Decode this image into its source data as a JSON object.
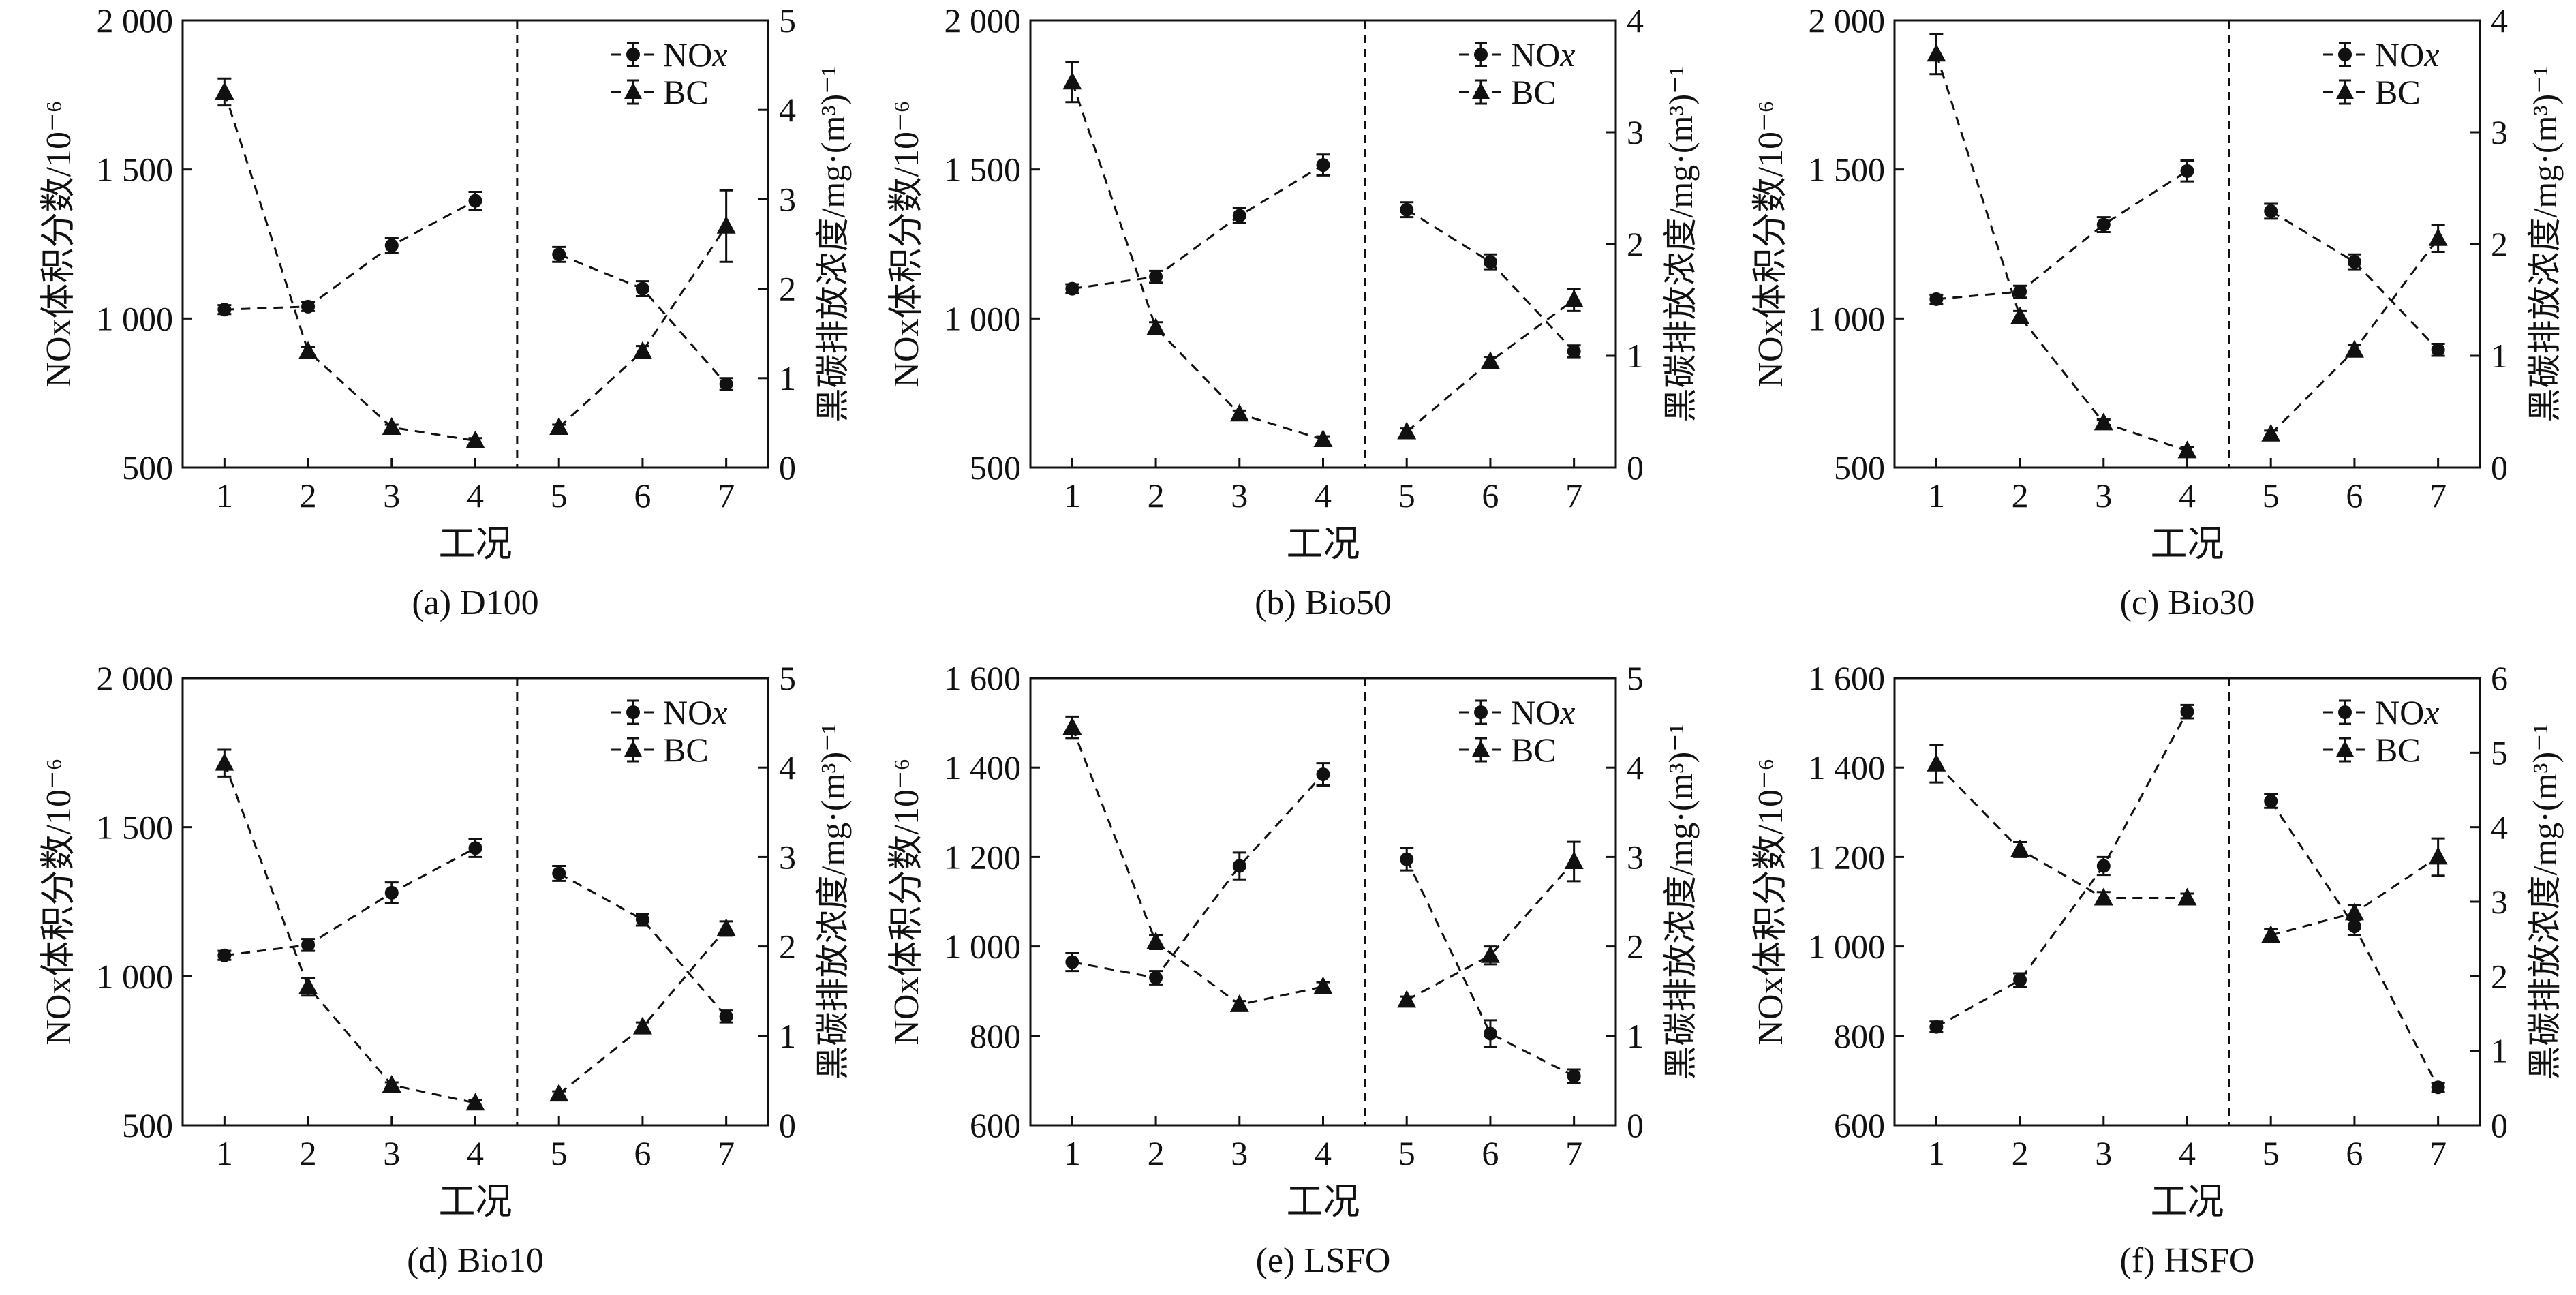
{
  "chart_data": [
    {
      "type": "line",
      "caption": "(a) D100",
      "xlabel": "工况",
      "ylabel_left": "NOx体积分数/10⁻⁶",
      "ylabel_right": "黑碳排放浓度/mg·(m³)⁻¹",
      "x": [
        1,
        2,
        3,
        4,
        5,
        6,
        7
      ],
      "left_ylim": [
        500,
        2000
      ],
      "left_ticks": [
        500,
        1000,
        1500,
        2000
      ],
      "left_tick_labels": [
        "500",
        "1 000",
        "1 500",
        "2 000"
      ],
      "right_ylim": [
        0,
        5
      ],
      "right_ticks": [
        0,
        1,
        2,
        3,
        4,
        5
      ],
      "right_tick_labels": [
        "0",
        "1",
        "2",
        "3",
        "4",
        "5"
      ],
      "divider_after_x": 4.5,
      "legend": [
        {
          "marker": "circle",
          "prefix": "NO",
          "italic": "x"
        },
        {
          "marker": "triangle",
          "prefix": "BC",
          "italic": ""
        }
      ],
      "series": [
        {
          "name": "NOx",
          "axis": "left",
          "marker": "circle",
          "values": [
            1030,
            1040,
            1245,
            1395,
            1215,
            1100,
            780
          ],
          "errors": [
            15,
            15,
            25,
            30,
            25,
            25,
            20
          ]
        },
        {
          "name": "BC",
          "axis": "right",
          "marker": "triangle",
          "values": [
            4.2,
            1.3,
            0.45,
            0.3,
            0.45,
            1.3,
            2.7
          ],
          "errors": [
            0.15,
            0.05,
            0.03,
            0.03,
            0.03,
            0.06,
            0.4
          ]
        }
      ]
    },
    {
      "type": "line",
      "caption": "(b) Bio50",
      "xlabel": "工况",
      "ylabel_left": "NOx体积分数/10⁻⁶",
      "ylabel_right": "黑碳排放浓度/mg·(m³)⁻¹",
      "x": [
        1,
        2,
        3,
        4,
        5,
        6,
        7
      ],
      "left_ylim": [
        500,
        2000
      ],
      "left_ticks": [
        500,
        1000,
        1500,
        2000
      ],
      "left_tick_labels": [
        "500",
        "1 000",
        "1 500",
        "2 000"
      ],
      "right_ylim": [
        0,
        4
      ],
      "right_ticks": [
        0,
        1,
        2,
        3,
        4
      ],
      "right_tick_labels": [
        "0",
        "1",
        "2",
        "3",
        "4"
      ],
      "divider_after_x": 4.5,
      "legend": [
        {
          "marker": "circle",
          "prefix": "NO",
          "italic": "x"
        },
        {
          "marker": "triangle",
          "prefix": "BC",
          "italic": ""
        }
      ],
      "series": [
        {
          "name": "NOx",
          "axis": "left",
          "marker": "circle",
          "values": [
            1100,
            1140,
            1345,
            1515,
            1365,
            1190,
            890
          ],
          "errors": [
            15,
            20,
            25,
            35,
            25,
            25,
            20
          ]
        },
        {
          "name": "BC",
          "axis": "right",
          "marker": "triangle",
          "values": [
            3.45,
            1.25,
            0.48,
            0.25,
            0.32,
            0.95,
            1.5
          ],
          "errors": [
            0.18,
            0.05,
            0.03,
            0.03,
            0.03,
            0.04,
            0.1
          ]
        }
      ]
    },
    {
      "type": "line",
      "caption": "(c) Bio30",
      "xlabel": "工况",
      "ylabel_left": "NOx体积分数/10⁻⁶",
      "ylabel_right": "黑碳排放浓度/mg·(m³)⁻¹",
      "x": [
        1,
        2,
        3,
        4,
        5,
        6,
        7
      ],
      "left_ylim": [
        500,
        2000
      ],
      "left_ticks": [
        500,
        1000,
        1500,
        2000
      ],
      "left_tick_labels": [
        "500",
        "1 000",
        "1 500",
        "2 000"
      ],
      "right_ylim": [
        0,
        4
      ],
      "right_ticks": [
        0,
        1,
        2,
        3,
        4
      ],
      "right_tick_labels": [
        "0",
        "1",
        "2",
        "3",
        "4"
      ],
      "divider_after_x": 4.5,
      "legend": [
        {
          "marker": "circle",
          "prefix": "NO",
          "italic": "x"
        },
        {
          "marker": "triangle",
          "prefix": "BC",
          "italic": ""
        }
      ],
      "series": [
        {
          "name": "NOx",
          "axis": "left",
          "marker": "circle",
          "values": [
            1065,
            1090,
            1315,
            1495,
            1360,
            1190,
            895
          ],
          "errors": [
            15,
            20,
            25,
            35,
            25,
            25,
            20
          ]
        },
        {
          "name": "BC",
          "axis": "right",
          "marker": "triangle",
          "values": [
            3.7,
            1.35,
            0.4,
            0.15,
            0.3,
            1.05,
            2.05
          ],
          "errors": [
            0.18,
            0.05,
            0.03,
            0.03,
            0.03,
            0.05,
            0.12
          ]
        }
      ]
    },
    {
      "type": "line",
      "caption": "(d) Bio10",
      "xlabel": "工况",
      "ylabel_left": "NOx体积分数/10⁻⁶",
      "ylabel_right": "黑碳排放浓度/mg·(m³)⁻¹",
      "x": [
        1,
        2,
        3,
        4,
        5,
        6,
        7
      ],
      "left_ylim": [
        500,
        2000
      ],
      "left_ticks": [
        500,
        1000,
        1500,
        2000
      ],
      "left_tick_labels": [
        "500",
        "1 000",
        "1 500",
        "2 000"
      ],
      "right_ylim": [
        0,
        5
      ],
      "right_ticks": [
        0,
        1,
        2,
        3,
        4,
        5
      ],
      "right_tick_labels": [
        "0",
        "1",
        "2",
        "3",
        "4",
        "5"
      ],
      "divider_after_x": 4.5,
      "legend": [
        {
          "marker": "circle",
          "prefix": "NO",
          "italic": "x"
        },
        {
          "marker": "triangle",
          "prefix": "BC",
          "italic": ""
        }
      ],
      "series": [
        {
          "name": "NOx",
          "axis": "left",
          "marker": "circle",
          "values": [
            1070,
            1105,
            1280,
            1430,
            1345,
            1190,
            865
          ],
          "errors": [
            15,
            20,
            35,
            30,
            25,
            20,
            20
          ]
        },
        {
          "name": "BC",
          "axis": "right",
          "marker": "triangle",
          "values": [
            4.05,
            1.55,
            0.45,
            0.25,
            0.35,
            1.1,
            2.2
          ],
          "errors": [
            0.15,
            0.1,
            0.03,
            0.03,
            0.03,
            0.05,
            0.08
          ]
        }
      ]
    },
    {
      "type": "line",
      "caption": "(e) LSFO",
      "xlabel": "工况",
      "ylabel_left": "NOx体积分数/10⁻⁶",
      "ylabel_right": "黑碳排放浓度/mg·(m³)⁻¹",
      "x": [
        1,
        2,
        3,
        4,
        5,
        6,
        7
      ],
      "left_ylim": [
        600,
        1600
      ],
      "left_ticks": [
        600,
        800,
        1000,
        1200,
        1400,
        1600
      ],
      "left_tick_labels": [
        "600",
        "800",
        "1 000",
        "1 200",
        "1 400",
        "1 600"
      ],
      "right_ylim": [
        0,
        5
      ],
      "right_ticks": [
        0,
        1,
        2,
        3,
        4,
        5
      ],
      "right_tick_labels": [
        "0",
        "1",
        "2",
        "3",
        "4",
        "5"
      ],
      "divider_after_x": 4.5,
      "legend": [
        {
          "marker": "circle",
          "prefix": "NO",
          "italic": "x"
        },
        {
          "marker": "triangle",
          "prefix": "BC",
          "italic": ""
        }
      ],
      "series": [
        {
          "name": "NOx",
          "axis": "left",
          "marker": "circle",
          "values": [
            965,
            930,
            1180,
            1385,
            1195,
            805,
            710
          ],
          "errors": [
            20,
            15,
            30,
            25,
            25,
            30,
            15
          ]
        },
        {
          "name": "BC",
          "axis": "right",
          "marker": "triangle",
          "values": [
            4.45,
            2.05,
            1.35,
            1.55,
            1.4,
            1.9,
            2.95
          ],
          "errors": [
            0.12,
            0.08,
            0.04,
            0.05,
            0.04,
            0.1,
            0.22
          ]
        }
      ]
    },
    {
      "type": "line",
      "caption": "(f) HSFO",
      "xlabel": "工况",
      "ylabel_left": "NOx体积分数/10⁻⁶",
      "ylabel_right": "黑碳排放浓度/mg·(m³)⁻¹",
      "x": [
        1,
        2,
        3,
        4,
        5,
        6,
        7
      ],
      "left_ylim": [
        600,
        1600
      ],
      "left_ticks": [
        600,
        800,
        1000,
        1200,
        1400,
        1600
      ],
      "left_tick_labels": [
        "600",
        "800",
        "1 000",
        "1 200",
        "1 400",
        "1 600"
      ],
      "right_ylim": [
        0,
        6
      ],
      "right_ticks": [
        0,
        1,
        2,
        3,
        4,
        5,
        6
      ],
      "right_tick_labels": [
        "0",
        "1",
        "2",
        "3",
        "4",
        "5",
        "6"
      ],
      "divider_after_x": 4.5,
      "legend": [
        {
          "marker": "circle",
          "prefix": "NO",
          "italic": "x"
        },
        {
          "marker": "triangle",
          "prefix": "BC",
          "italic": ""
        }
      ],
      "series": [
        {
          "name": "NOx",
          "axis": "left",
          "marker": "circle",
          "values": [
            820,
            925,
            1180,
            1525,
            1325,
            1045,
            685
          ],
          "errors": [
            12,
            15,
            20,
            15,
            15,
            20,
            10
          ]
        },
        {
          "name": "BC",
          "axis": "right",
          "marker": "triangle",
          "values": [
            4.85,
            3.7,
            3.05,
            3.05,
            2.55,
            2.85,
            3.6
          ],
          "errors": [
            0.25,
            0.1,
            0.08,
            0.06,
            0.08,
            0.1,
            0.25
          ]
        }
      ]
    }
  ]
}
